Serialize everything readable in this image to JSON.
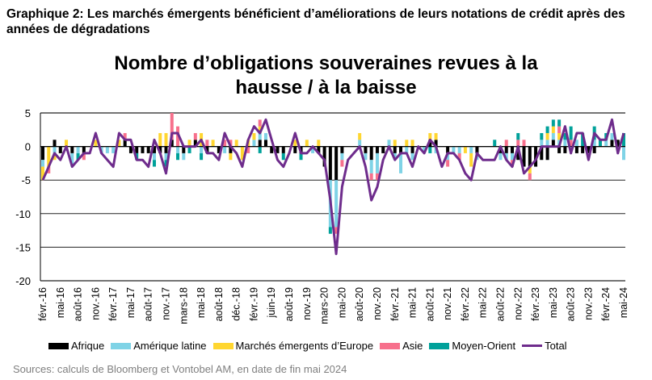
{
  "subtitle": "Graphique 2: Les marchés émergents bénéficient d’améliorations de leurs notations de crédit après des années de dégradations",
  "source": "Sources: calculs de Bloomberg et Vontobel AM, en date de fin mai 2024",
  "chart_data": {
    "type": "bar",
    "stacked": true,
    "title_line1": "Nombre d’obligations souveraines revues à la",
    "title_line2": "hausse / à la baisse",
    "ylim": [
      -20,
      5
    ],
    "yticks": [
      5,
      0,
      -5,
      -10,
      -15,
      -20
    ],
    "grid": true,
    "legend_position": "bottom",
    "x_tick_labels": [
      "févr.-16",
      "mai-16",
      "août-16",
      "nov.-16",
      "févr.-17",
      "mai-17",
      "août-17",
      "nov.-17",
      "mars-18",
      "mai-18",
      "août-18",
      "déc.-18",
      "févr.-19",
      "juin-19",
      "août-19",
      "nov.-19",
      "mars-20",
      "mai-20",
      "août-20",
      "nov.-20",
      "févr.-21",
      "mai-21",
      "août-21",
      "nov.-21",
      "févr.-22",
      "mai-22",
      "août-22",
      "nov.-22",
      "févr.-23",
      "mai-23",
      "août-23",
      "nov.-23",
      "févr.-24",
      "mai-24"
    ],
    "n_periods": 100,
    "series": [
      {
        "name": "Afrique",
        "color": "#000000",
        "kind": "bar",
        "values": [
          -2,
          0,
          1,
          -1,
          0,
          -1,
          0,
          -1,
          0,
          0,
          0,
          0,
          0,
          0,
          1,
          -1,
          -1,
          -1,
          -1,
          -1,
          -1,
          -1,
          1,
          0,
          -1,
          0,
          1,
          0,
          -1,
          0,
          -1,
          0,
          -1,
          0,
          0,
          0,
          0,
          1,
          1,
          -1,
          -1,
          -1,
          0,
          -1,
          -1,
          0,
          0,
          -1,
          -3,
          -5,
          -5,
          -1,
          0,
          0,
          0,
          -1,
          -2,
          -1,
          -1,
          0,
          -1,
          -1,
          0,
          -1,
          0,
          0,
          1,
          1,
          0,
          -1,
          0,
          0,
          0,
          0,
          -1,
          0,
          0,
          0,
          -1,
          -1,
          -1,
          -2,
          -3,
          -3,
          -3,
          -2,
          -2,
          1,
          -1,
          -1,
          0,
          -1,
          -1,
          -1,
          -1,
          0,
          0,
          1,
          1,
          0
        ]
      },
      {
        "name": "Amérique latine",
        "color": "#7fd3e6",
        "kind": "bar",
        "values": [
          -1,
          0,
          -1,
          0,
          0,
          -2,
          -1,
          0,
          0,
          0,
          -1,
          -1,
          -1,
          0,
          0,
          0,
          0,
          0,
          0,
          -1,
          0,
          -1,
          0,
          -1,
          -1,
          0,
          0,
          -1,
          0,
          0,
          0,
          -1,
          0,
          0,
          0,
          0,
          1,
          1,
          1,
          0,
          0,
          0,
          0,
          0,
          0,
          0,
          -1,
          0,
          0,
          -7,
          -7,
          -1,
          0,
          0,
          1,
          -1,
          -2,
          -3,
          0,
          1,
          -1,
          -3,
          -1,
          -1,
          0,
          -1,
          0,
          -1,
          0,
          -1,
          -1,
          -1,
          0,
          -1,
          -1,
          0,
          0,
          0,
          -1,
          -1,
          -1,
          0,
          0,
          0,
          0,
          1,
          1,
          1,
          1,
          1,
          0,
          1,
          0,
          0,
          1,
          0,
          1,
          1,
          0,
          -2
        ]
      },
      {
        "name": "Marchés émergents d’Europe",
        "color": "#ffd630",
        "kind": "bar",
        "values": [
          -2,
          -3,
          -1,
          0,
          1,
          0,
          0,
          0,
          0,
          1,
          0,
          0,
          0,
          1,
          0,
          0,
          0,
          0,
          0,
          0,
          2,
          2,
          0,
          0,
          0,
          1,
          0,
          2,
          0,
          1,
          0,
          0,
          -1,
          1,
          -2,
          1,
          1,
          1,
          0,
          0,
          0,
          0,
          0,
          1,
          0,
          1,
          0,
          1,
          0,
          0,
          0,
          0,
          0,
          0,
          1,
          0,
          0,
          0,
          0,
          0,
          1,
          0,
          1,
          1,
          0,
          0,
          1,
          1,
          0,
          0,
          0,
          0,
          -1,
          -2,
          0,
          0,
          0,
          0,
          0,
          0,
          0,
          0,
          0,
          -1,
          0,
          0,
          1,
          1,
          1,
          0,
          0,
          0,
          0,
          0,
          0,
          0,
          0,
          0,
          0,
          0
        ]
      },
      {
        "name": "Asie",
        "color": "#f7708c",
        "kind": "bar",
        "values": [
          0,
          -1,
          0,
          0,
          0,
          0,
          0,
          -1,
          0,
          0,
          0,
          0,
          0,
          0,
          1,
          0,
          0,
          0,
          0,
          0,
          0,
          0,
          4,
          3,
          0,
          0,
          1,
          0,
          1,
          0,
          0,
          1,
          1,
          0,
          0,
          -1,
          0,
          1,
          0,
          0,
          0,
          0,
          0,
          0,
          0,
          0,
          0,
          0,
          0,
          0,
          -1,
          -1,
          0,
          0,
          0,
          0,
          -1,
          -1,
          0,
          0,
          0,
          0,
          0,
          0,
          0,
          0,
          0,
          0,
          0,
          -1,
          0,
          -1,
          0,
          0,
          0,
          0,
          0,
          0,
          0,
          1,
          -1,
          1,
          1,
          -1,
          0,
          0,
          0,
          0,
          1,
          0,
          1,
          0,
          0,
          0,
          0,
          0,
          0,
          0,
          0,
          0
        ]
      },
      {
        "name": "Moyen-Orient",
        "color": "#00a19a",
        "kind": "bar",
        "values": [
          0,
          0,
          0,
          0,
          0,
          0,
          -1,
          0,
          0,
          0,
          0,
          0,
          0,
          0,
          0,
          0,
          -1,
          0,
          0,
          -1,
          0,
          -1,
          0,
          -1,
          0,
          -1,
          0,
          -1,
          0,
          0,
          0,
          0,
          0,
          0,
          0,
          0,
          0,
          -1,
          0,
          0,
          0,
          -1,
          0,
          0,
          -1,
          0,
          0,
          0,
          0,
          -1,
          0,
          0,
          0,
          0,
          0,
          0,
          0,
          0,
          0,
          0,
          0,
          0,
          0,
          0,
          0,
          0,
          -1,
          0,
          0,
          0,
          0,
          0,
          0,
          0,
          0,
          0,
          0,
          1,
          0,
          0,
          0,
          1,
          0,
          0,
          0,
          1,
          1,
          1,
          1,
          1,
          2,
          0,
          2,
          0,
          2,
          1,
          1,
          0,
          0,
          2
        ]
      },
      {
        "name": "Total",
        "color": "#6e2c8c",
        "kind": "line",
        "values": [
          -5,
          -3,
          -1,
          -2,
          0,
          -3,
          -2,
          -1,
          -1,
          2,
          -1,
          -2,
          -3,
          2,
          1,
          1,
          -2,
          -2,
          -3,
          1,
          -1,
          -4,
          2,
          2,
          0,
          0,
          0,
          1,
          -1,
          -1,
          -2,
          2,
          0,
          -1,
          -3,
          1,
          3,
          2,
          4,
          1,
          -2,
          -3,
          -1,
          2,
          -1,
          -1,
          0,
          -1,
          -2,
          -8,
          -16,
          -6,
          -2,
          -1,
          0,
          -3,
          -8,
          -6,
          -2,
          0,
          -2,
          -1,
          -1,
          -3,
          0,
          -1,
          1,
          0,
          -3,
          -1,
          -1,
          -2,
          -4,
          -5,
          -1,
          -2,
          -2,
          -2,
          0,
          -2,
          -3,
          0,
          -4,
          -3,
          -2,
          0,
          0,
          0,
          0,
          3,
          -1,
          2,
          2,
          -2,
          2,
          1,
          1,
          4,
          -1,
          2
        ]
      }
    ]
  },
  "legend": [
    {
      "label": "Afrique",
      "color": "#000000",
      "kind": "bar"
    },
    {
      "label": "Amérique latine",
      "color": "#7fd3e6",
      "kind": "bar"
    },
    {
      "label": "Marchés émergents d’Europe",
      "color": "#ffd630",
      "kind": "bar"
    },
    {
      "label": "Asie",
      "color": "#f7708c",
      "kind": "bar"
    },
    {
      "label": "Moyen-Orient",
      "color": "#00a19a",
      "kind": "bar"
    },
    {
      "label": "Total",
      "color": "#6e2c8c",
      "kind": "line"
    }
  ]
}
